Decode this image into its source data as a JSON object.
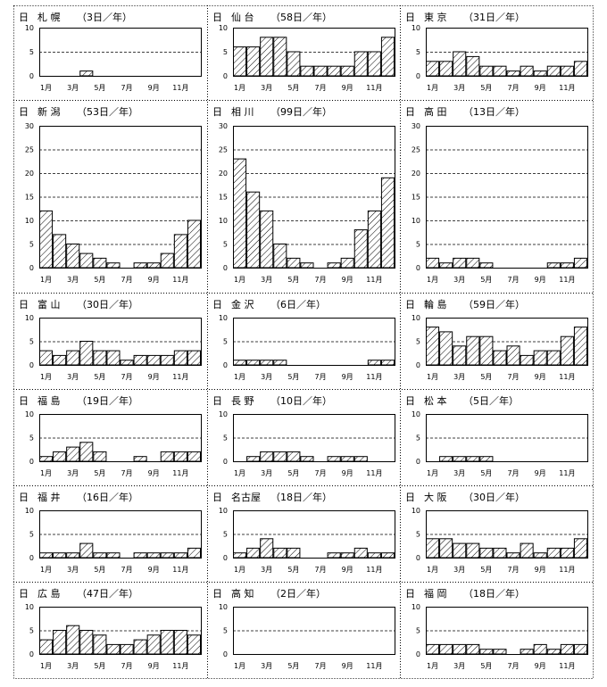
{
  "months": [
    "1月",
    "3月",
    "5月",
    "7月",
    "9月",
    "11月"
  ],
  "axis_unit": "日",
  "chart_data": [
    {
      "type": "bar",
      "city": "札 幌",
      "annual": "（3日／年）",
      "ylim": [
        0,
        10
      ],
      "yticks": [
        0,
        5,
        10
      ],
      "categories": [
        "1",
        "2",
        "3",
        "4",
        "5",
        "6",
        "7",
        "8",
        "9",
        "10",
        "11",
        "12"
      ],
      "values": [
        0,
        0,
        0,
        1,
        0,
        0,
        0,
        0,
        0,
        0,
        0,
        0
      ]
    },
    {
      "type": "bar",
      "city": "仙 台",
      "annual": "（58日／年）",
      "ylim": [
        0,
        10
      ],
      "yticks": [
        0,
        5,
        10
      ],
      "categories": [
        "1",
        "2",
        "3",
        "4",
        "5",
        "6",
        "7",
        "8",
        "9",
        "10",
        "11",
        "12"
      ],
      "values": [
        6,
        6,
        8,
        8,
        5,
        2,
        2,
        2,
        2,
        5,
        5,
        8
      ]
    },
    {
      "type": "bar",
      "city": "東 京",
      "annual": "（31日／年）",
      "ylim": [
        0,
        10
      ],
      "yticks": [
        0,
        5,
        10
      ],
      "categories": [
        "1",
        "2",
        "3",
        "4",
        "5",
        "6",
        "7",
        "8",
        "9",
        "10",
        "11",
        "12"
      ],
      "values": [
        3,
        3,
        5,
        4,
        2,
        2,
        1,
        2,
        1,
        2,
        2,
        3
      ]
    },
    {
      "type": "bar",
      "city": "新 潟",
      "annual": "（53日／年）",
      "ylim": [
        0,
        30
      ],
      "yticks": [
        0,
        5,
        10,
        15,
        20,
        25,
        30
      ],
      "categories": [
        "1",
        "2",
        "3",
        "4",
        "5",
        "6",
        "7",
        "8",
        "9",
        "10",
        "11",
        "12"
      ],
      "values": [
        12,
        7,
        5,
        3,
        2,
        1,
        0,
        1,
        1,
        3,
        7,
        10
      ]
    },
    {
      "type": "bar",
      "city": "相 川",
      "annual": "（99日／年）",
      "ylim": [
        0,
        30
      ],
      "yticks": [
        0,
        5,
        10,
        15,
        20,
        25,
        30
      ],
      "categories": [
        "1",
        "2",
        "3",
        "4",
        "5",
        "6",
        "7",
        "8",
        "9",
        "10",
        "11",
        "12"
      ],
      "values": [
        23,
        16,
        12,
        5,
        2,
        1,
        0,
        1,
        2,
        8,
        12,
        19
      ]
    },
    {
      "type": "bar",
      "city": "高 田",
      "annual": "（13日／年）",
      "ylim": [
        0,
        30
      ],
      "yticks": [
        0,
        5,
        10,
        15,
        20,
        25,
        30
      ],
      "categories": [
        "1",
        "2",
        "3",
        "4",
        "5",
        "6",
        "7",
        "8",
        "9",
        "10",
        "11",
        "12"
      ],
      "values": [
        2,
        1,
        2,
        2,
        1,
        0,
        0,
        0,
        0,
        1,
        1,
        2
      ]
    },
    {
      "type": "bar",
      "city": "富 山",
      "annual": "（30日／年）",
      "ylim": [
        0,
        10
      ],
      "yticks": [
        0,
        5,
        10
      ],
      "categories": [
        "1",
        "2",
        "3",
        "4",
        "5",
        "6",
        "7",
        "8",
        "9",
        "10",
        "11",
        "12"
      ],
      "values": [
        3,
        2,
        3,
        5,
        3,
        3,
        1,
        2,
        2,
        2,
        3,
        3
      ]
    },
    {
      "type": "bar",
      "city": "金 沢",
      "annual": "（6日／年）",
      "ylim": [
        0,
        10
      ],
      "yticks": [
        0,
        5,
        10
      ],
      "categories": [
        "1",
        "2",
        "3",
        "4",
        "5",
        "6",
        "7",
        "8",
        "9",
        "10",
        "11",
        "12"
      ],
      "values": [
        1,
        1,
        1,
        1,
        0,
        0,
        0,
        0,
        0,
        0,
        1,
        1
      ]
    },
    {
      "type": "bar",
      "city": "輪 島",
      "annual": "（59日／年）",
      "ylim": [
        0,
        10
      ],
      "yticks": [
        0,
        5,
        10
      ],
      "categories": [
        "1",
        "2",
        "3",
        "4",
        "5",
        "6",
        "7",
        "8",
        "9",
        "10",
        "11",
        "12"
      ],
      "values": [
        8,
        7,
        4,
        6,
        6,
        3,
        4,
        2,
        3,
        3,
        6,
        8
      ]
    },
    {
      "type": "bar",
      "city": "福 島",
      "annual": "（19日／年）",
      "ylim": [
        0,
        10
      ],
      "yticks": [
        0,
        5,
        10
      ],
      "categories": [
        "1",
        "2",
        "3",
        "4",
        "5",
        "6",
        "7",
        "8",
        "9",
        "10",
        "11",
        "12"
      ],
      "values": [
        1,
        2,
        3,
        4,
        2,
        0,
        0,
        1,
        0,
        2,
        2,
        2
      ]
    },
    {
      "type": "bar",
      "city": "長 野",
      "annual": "（10日／年）",
      "ylim": [
        0,
        10
      ],
      "yticks": [
        0,
        5,
        10
      ],
      "categories": [
        "1",
        "2",
        "3",
        "4",
        "5",
        "6",
        "7",
        "8",
        "9",
        "10",
        "11",
        "12"
      ],
      "values": [
        0,
        1,
        2,
        2,
        2,
        1,
        0,
        1,
        1,
        1,
        0,
        0
      ]
    },
    {
      "type": "bar",
      "city": "松 本",
      "annual": "（5日／年）",
      "ylim": [
        0,
        10
      ],
      "yticks": [
        0,
        5,
        10
      ],
      "categories": [
        "1",
        "2",
        "3",
        "4",
        "5",
        "6",
        "7",
        "8",
        "9",
        "10",
        "11",
        "12"
      ],
      "values": [
        0,
        1,
        1,
        1,
        1,
        0,
        0,
        0,
        0,
        0,
        0,
        0
      ]
    },
    {
      "type": "bar",
      "city": "福 井",
      "annual": "（16日／年）",
      "ylim": [
        0,
        10
      ],
      "yticks": [
        0,
        5,
        10
      ],
      "categories": [
        "1",
        "2",
        "3",
        "4",
        "5",
        "6",
        "7",
        "8",
        "9",
        "10",
        "11",
        "12"
      ],
      "values": [
        1,
        1,
        1,
        3,
        1,
        1,
        0,
        1,
        1,
        1,
        1,
        2
      ]
    },
    {
      "type": "bar",
      "city": "名古屋",
      "annual": "（18日／年）",
      "ylim": [
        0,
        10
      ],
      "yticks": [
        0,
        5,
        10
      ],
      "categories": [
        "1",
        "2",
        "3",
        "4",
        "5",
        "6",
        "7",
        "8",
        "9",
        "10",
        "11",
        "12"
      ],
      "values": [
        1,
        2,
        4,
        2,
        2,
        0,
        0,
        1,
        1,
        2,
        1,
        1
      ]
    },
    {
      "type": "bar",
      "city": "大 阪",
      "annual": "（30日／年）",
      "ylim": [
        0,
        10
      ],
      "yticks": [
        0,
        5,
        10
      ],
      "categories": [
        "1",
        "2",
        "3",
        "4",
        "5",
        "6",
        "7",
        "8",
        "9",
        "10",
        "11",
        "12"
      ],
      "values": [
        4,
        4,
        3,
        3,
        2,
        2,
        1,
        3,
        1,
        2,
        2,
        4
      ]
    },
    {
      "type": "bar",
      "city": "広 島",
      "annual": "（47日／年）",
      "ylim": [
        0,
        10
      ],
      "yticks": [
        0,
        5,
        10
      ],
      "categories": [
        "1",
        "2",
        "3",
        "4",
        "5",
        "6",
        "7",
        "8",
        "9",
        "10",
        "11",
        "12"
      ],
      "values": [
        3,
        5,
        6,
        5,
        4,
        2,
        2,
        3,
        4,
        5,
        5,
        4
      ]
    },
    {
      "type": "bar",
      "city": "高 知",
      "annual": "（2日／年）",
      "ylim": [
        0,
        10
      ],
      "yticks": [
        0,
        5,
        10
      ],
      "categories": [
        "1",
        "2",
        "3",
        "4",
        "5",
        "6",
        "7",
        "8",
        "9",
        "10",
        "11",
        "12"
      ],
      "values": [
        0,
        0,
        0,
        0,
        0,
        0,
        0,
        0,
        0,
        0,
        0,
        0
      ]
    },
    {
      "type": "bar",
      "city": "福 岡",
      "annual": "（18日／年）",
      "ylim": [
        0,
        10
      ],
      "yticks": [
        0,
        5,
        10
      ],
      "categories": [
        "1",
        "2",
        "3",
        "4",
        "5",
        "6",
        "7",
        "8",
        "9",
        "10",
        "11",
        "12"
      ],
      "values": [
        2,
        2,
        2,
        2,
        1,
        1,
        0,
        1,
        2,
        1,
        2,
        2
      ]
    }
  ]
}
